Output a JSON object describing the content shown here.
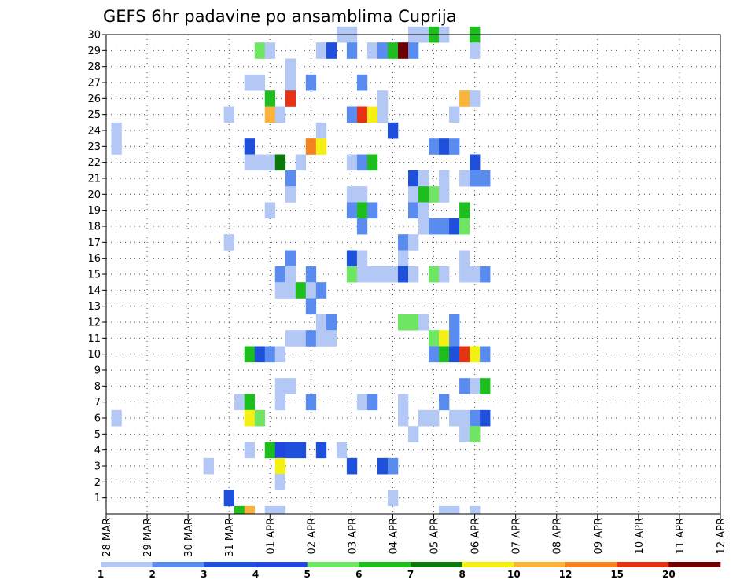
{
  "chart_data": {
    "type": "heatmap",
    "title": "GEFS 6hr padavine po ansamblima Cuprija",
    "xlabel": "",
    "ylabel": "",
    "x_dates": [
      "28 MAR",
      "29 MAR",
      "30 MAR",
      "31 MAR",
      "01 APR",
      "02 APR",
      "03 APR",
      "04 APR",
      "05 APR",
      "06 APR",
      "07 APR",
      "08 APR",
      "09 APR",
      "10 APR",
      "11 APR",
      "12 APR"
    ],
    "y_ticks": [
      1,
      2,
      3,
      4,
      5,
      6,
      7,
      8,
      9,
      10,
      11,
      12,
      13,
      14,
      15,
      16,
      17,
      18,
      19,
      20,
      21,
      22,
      23,
      24,
      25,
      26,
      27,
      28,
      29,
      30
    ],
    "y_range": [
      0,
      30
    ],
    "x_steps_per_day": 4,
    "x_total_steps": 61,
    "grid": true,
    "legend": {
      "placement": "bottom",
      "labels": [
        "1",
        "2",
        "3",
        "4",
        "5",
        "6",
        "7",
        "8",
        "10",
        "12",
        "15",
        "20"
      ],
      "colors": [
        "#b4c8f5",
        "#5a8cf0",
        "#1e50dc",
        "#2244e0",
        "#6ee664",
        "#1ebe1e",
        "#0a780a",
        "#f5f014",
        "#fab43c",
        "#f5821e",
        "#e63214",
        "#6e0000"
      ]
    },
    "cells": [
      [
        23,
        30,
        0
      ],
      [
        24,
        30,
        0
      ],
      [
        30,
        30,
        0
      ],
      [
        31,
        30,
        0
      ],
      [
        32,
        30,
        5
      ],
      [
        33,
        30,
        0
      ],
      [
        36,
        30,
        5
      ],
      [
        15,
        29,
        4
      ],
      [
        16,
        29,
        0
      ],
      [
        21,
        29,
        0
      ],
      [
        22,
        29,
        2
      ],
      [
        24,
        29,
        1
      ],
      [
        26,
        29,
        0
      ],
      [
        27,
        29,
        1
      ],
      [
        28,
        29,
        5
      ],
      [
        29,
        29,
        11
      ],
      [
        30,
        29,
        1
      ],
      [
        36,
        29,
        0
      ],
      [
        18,
        28,
        0
      ],
      [
        14,
        27,
        0
      ],
      [
        15,
        27,
        0
      ],
      [
        18,
        27,
        0
      ],
      [
        20,
        27,
        1
      ],
      [
        25,
        27,
        1
      ],
      [
        16,
        26,
        5
      ],
      [
        18,
        26,
        10
      ],
      [
        27,
        26,
        0
      ],
      [
        35,
        26,
        8
      ],
      [
        36,
        26,
        0
      ],
      [
        12,
        25,
        0
      ],
      [
        16,
        25,
        8
      ],
      [
        17,
        25,
        0
      ],
      [
        24,
        25,
        1
      ],
      [
        25,
        25,
        10
      ],
      [
        26,
        25,
        7
      ],
      [
        27,
        25,
        0
      ],
      [
        34,
        25,
        0
      ],
      [
        1,
        24,
        0
      ],
      [
        21,
        24,
        0
      ],
      [
        28,
        24,
        2
      ],
      [
        1,
        23,
        0
      ],
      [
        14,
        23,
        2
      ],
      [
        20,
        23,
        9
      ],
      [
        21,
        23,
        7
      ],
      [
        32,
        23,
        1
      ],
      [
        33,
        23,
        2
      ],
      [
        34,
        23,
        1
      ],
      [
        14,
        22,
        0
      ],
      [
        15,
        22,
        0
      ],
      [
        16,
        22,
        0
      ],
      [
        17,
        22,
        6
      ],
      [
        19,
        22,
        0
      ],
      [
        24,
        22,
        0
      ],
      [
        25,
        22,
        1
      ],
      [
        26,
        22,
        5
      ],
      [
        36,
        22,
        2
      ],
      [
        18,
        21,
        1
      ],
      [
        30,
        21,
        2
      ],
      [
        31,
        21,
        0
      ],
      [
        33,
        21,
        0
      ],
      [
        35,
        21,
        0
      ],
      [
        36,
        21,
        1
      ],
      [
        37,
        21,
        1
      ],
      [
        18,
        20,
        0
      ],
      [
        24,
        20,
        0
      ],
      [
        25,
        20,
        0
      ],
      [
        30,
        20,
        0
      ],
      [
        31,
        20,
        5
      ],
      [
        32,
        20,
        4
      ],
      [
        33,
        20,
        0
      ],
      [
        16,
        19,
        0
      ],
      [
        24,
        19,
        1
      ],
      [
        25,
        19,
        5
      ],
      [
        26,
        19,
        1
      ],
      [
        30,
        19,
        1
      ],
      [
        31,
        19,
        0
      ],
      [
        35,
        19,
        5
      ],
      [
        25,
        18,
        1
      ],
      [
        31,
        18,
        0
      ],
      [
        32,
        18,
        1
      ],
      [
        33,
        18,
        1
      ],
      [
        34,
        18,
        2
      ],
      [
        35,
        18,
        4
      ],
      [
        12,
        17,
        0
      ],
      [
        29,
        17,
        1
      ],
      [
        30,
        17,
        0
      ],
      [
        18,
        16,
        1
      ],
      [
        24,
        16,
        2
      ],
      [
        25,
        16,
        0
      ],
      [
        29,
        16,
        0
      ],
      [
        35,
        16,
        0
      ],
      [
        17,
        15,
        1
      ],
      [
        18,
        15,
        0
      ],
      [
        20,
        15,
        1
      ],
      [
        24,
        15,
        4
      ],
      [
        25,
        15,
        0
      ],
      [
        26,
        15,
        0
      ],
      [
        27,
        15,
        0
      ],
      [
        28,
        15,
        0
      ],
      [
        29,
        15,
        2
      ],
      [
        30,
        15,
        0
      ],
      [
        32,
        15,
        4
      ],
      [
        33,
        15,
        0
      ],
      [
        35,
        15,
        0
      ],
      [
        36,
        15,
        0
      ],
      [
        37,
        15,
        1
      ],
      [
        17,
        14,
        0
      ],
      [
        18,
        14,
        0
      ],
      [
        19,
        14,
        5
      ],
      [
        20,
        14,
        0
      ],
      [
        21,
        14,
        1
      ],
      [
        20,
        13,
        1
      ],
      [
        21,
        12,
        0
      ],
      [
        22,
        12,
        1
      ],
      [
        29,
        12,
        4
      ],
      [
        30,
        12,
        4
      ],
      [
        31,
        12,
        0
      ],
      [
        34,
        12,
        1
      ],
      [
        18,
        11,
        0
      ],
      [
        19,
        11,
        0
      ],
      [
        20,
        11,
        1
      ],
      [
        21,
        11,
        0
      ],
      [
        22,
        11,
        0
      ],
      [
        32,
        11,
        4
      ],
      [
        33,
        11,
        7
      ],
      [
        34,
        11,
        1
      ],
      [
        14,
        10,
        5
      ],
      [
        15,
        10,
        2
      ],
      [
        16,
        10,
        1
      ],
      [
        17,
        10,
        0
      ],
      [
        32,
        10,
        1
      ],
      [
        33,
        10,
        5
      ],
      [
        34,
        10,
        2
      ],
      [
        35,
        10,
        10
      ],
      [
        36,
        10,
        7
      ],
      [
        37,
        10,
        1
      ],
      [
        17,
        8,
        0
      ],
      [
        18,
        8,
        0
      ],
      [
        35,
        8,
        1
      ],
      [
        36,
        8,
        0
      ],
      [
        37,
        8,
        5
      ],
      [
        13,
        7,
        0
      ],
      [
        14,
        7,
        5
      ],
      [
        17,
        7,
        0
      ],
      [
        20,
        7,
        1
      ],
      [
        25,
        7,
        0
      ],
      [
        26,
        7,
        1
      ],
      [
        29,
        7,
        0
      ],
      [
        33,
        7,
        1
      ],
      [
        1,
        6,
        0
      ],
      [
        14,
        6,
        7
      ],
      [
        15,
        6,
        4
      ],
      [
        29,
        6,
        0
      ],
      [
        31,
        6,
        0
      ],
      [
        32,
        6,
        0
      ],
      [
        34,
        6,
        0
      ],
      [
        35,
        6,
        0
      ],
      [
        36,
        6,
        1
      ],
      [
        37,
        6,
        2
      ],
      [
        30,
        5,
        0
      ],
      [
        35,
        5,
        0
      ],
      [
        36,
        5,
        4
      ],
      [
        14,
        4,
        0
      ],
      [
        16,
        4,
        5
      ],
      [
        17,
        4,
        3
      ],
      [
        18,
        4,
        2
      ],
      [
        19,
        4,
        2
      ],
      [
        21,
        4,
        2
      ],
      [
        23,
        4,
        0
      ],
      [
        10,
        3,
        0
      ],
      [
        17,
        3,
        7
      ],
      [
        24,
        3,
        2
      ],
      [
        27,
        3,
        2
      ],
      [
        28,
        3,
        1
      ],
      [
        17,
        2,
        0
      ],
      [
        12,
        1,
        2
      ],
      [
        28,
        1,
        0
      ],
      [
        13,
        0,
        5
      ],
      [
        14,
        0,
        8
      ],
      [
        16,
        0,
        0
      ],
      [
        17,
        0,
        0
      ],
      [
        33,
        0,
        0
      ],
      [
        34,
        0,
        0
      ],
      [
        36,
        0,
        0
      ]
    ]
  }
}
